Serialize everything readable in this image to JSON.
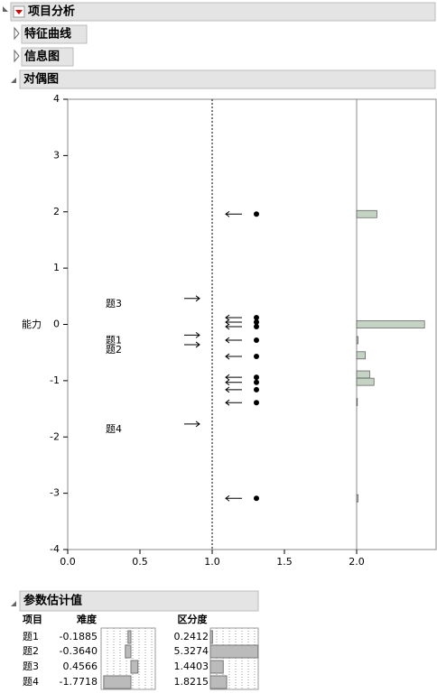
{
  "header": {
    "title": "项目分析"
  },
  "sections": [
    "特征曲线",
    "信息图",
    "对偶图"
  ],
  "chart_data": {
    "type": "dual-plot",
    "ylabel": "能力",
    "ylim": [
      -4,
      4
    ],
    "yticks": [
      -4,
      -3,
      -2,
      -1,
      0,
      1,
      2,
      3,
      4
    ],
    "xlim": [
      0,
      2.55
    ],
    "xticks": [
      {
        "value": 0,
        "label": "0.0"
      },
      0.5,
      {
        "value": 1,
        "label": "1.0"
      },
      1.5,
      {
        "value": 2,
        "label": "2.0"
      }
    ],
    "ref_lines": [
      1,
      2
    ],
    "items": {
      "labels": [
        "题1",
        "题2",
        "题3",
        "题4"
      ],
      "values": [
        -0.19,
        -0.36,
        0.46,
        -1.77
      ]
    },
    "persons": {
      "values": [
        1.96,
        0.12,
        0.04,
        -0.04,
        -0.28,
        -0.57,
        -0.94,
        -1.03,
        -1.16,
        -1.39,
        -3.09
      ]
    },
    "hist": {
      "color": "#c5d3c5",
      "y": [
        1.96,
        0.0,
        -0.28,
        -0.55,
        -0.89,
        -1.02,
        -1.38,
        -3.09
      ],
      "lengths": [
        0.14,
        0.47,
        0.01,
        0.06,
        0.09,
        0.12,
        0.005,
        0.01
      ]
    }
  },
  "table": {
    "title": "参数估计值",
    "columns": [
      "项目",
      "难度",
      "区分度"
    ],
    "rows": [
      [
        "题1",
        "-0.1885",
        "0.2412"
      ],
      [
        "题2",
        "-0.3640",
        "5.3274"
      ],
      [
        "题3",
        "0.4566",
        "1.4403"
      ],
      [
        "题4",
        "-1.7718",
        "1.8215"
      ]
    ]
  }
}
